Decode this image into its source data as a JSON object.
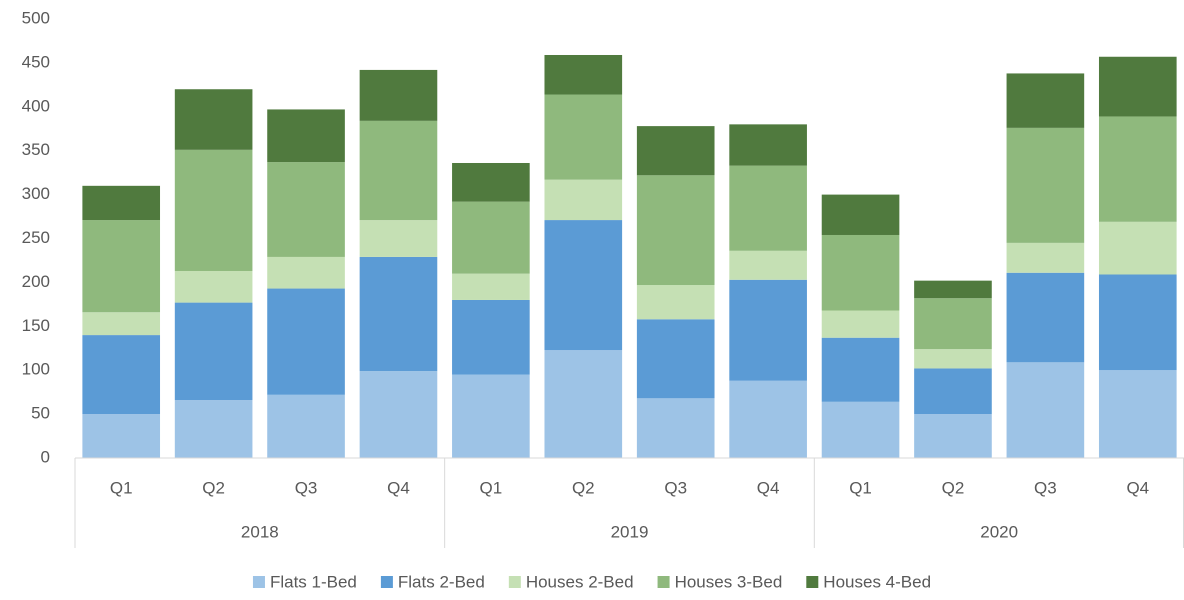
{
  "chart_data": {
    "type": "stacked_bar",
    "categories": [
      "Q1",
      "Q2",
      "Q3",
      "Q4",
      "Q1",
      "Q2",
      "Q3",
      "Q4",
      "Q1",
      "Q2",
      "Q3",
      "Q4"
    ],
    "groups": [
      "2018",
      "2019",
      "2020"
    ],
    "series": [
      {
        "name": "Flats 1-Bed",
        "color": "#9dc3e6",
        "values": [
          50,
          66,
          72,
          99,
          95,
          123,
          68,
          88,
          64,
          50,
          109,
          100
        ]
      },
      {
        "name": "Flats 2-Bed",
        "color": "#5b9bd5",
        "values": [
          90,
          111,
          121,
          130,
          85,
          148,
          90,
          115,
          73,
          52,
          102,
          109
        ]
      },
      {
        "name": "Houses 2-Bed",
        "color": "#c5e0b4",
        "values": [
          26,
          36,
          36,
          42,
          30,
          46,
          39,
          33,
          31,
          22,
          34,
          60
        ]
      },
      {
        "name": "Houses 3-Bed",
        "color": "#8fb97d",
        "values": [
          105,
          138,
          108,
          113,
          82,
          97,
          125,
          97,
          86,
          58,
          131,
          120
        ]
      },
      {
        "name": "Houses 4-Bed",
        "color": "#507a3e",
        "values": [
          39,
          69,
          60,
          58,
          44,
          45,
          56,
          47,
          46,
          20,
          62,
          68
        ]
      }
    ],
    "ylim": [
      0,
      500
    ],
    "yticks": [
      0,
      50,
      100,
      150,
      200,
      250,
      300,
      350,
      400,
      450,
      500
    ],
    "grid": false,
    "legend": "bottom"
  }
}
